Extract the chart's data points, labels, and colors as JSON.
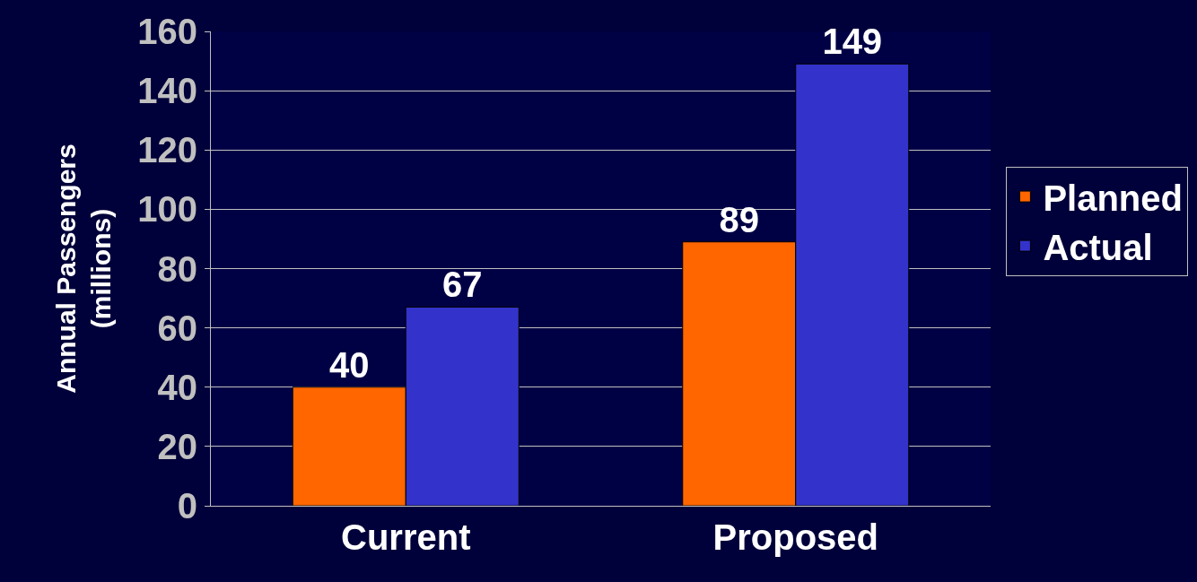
{
  "chart_data": {
    "type": "bar",
    "ylabel": "Annual Passengers\n(millions)",
    "categories": [
      "Current",
      "Proposed"
    ],
    "series": [
      {
        "name": "Planned",
        "color": "#ff6600",
        "values": [
          40,
          89
        ]
      },
      {
        "name": "Actual",
        "color": "#3333cc",
        "values": [
          67,
          149
        ]
      }
    ],
    "ylim": [
      0,
      160
    ],
    "yticks": [
      0,
      20,
      40,
      60,
      80,
      100,
      120,
      140,
      160
    ],
    "grid": "y",
    "legend": "right",
    "data_labels": true
  }
}
